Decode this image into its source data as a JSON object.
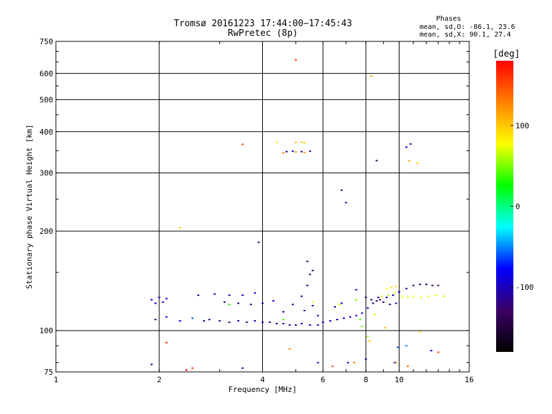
{
  "title": "Tromsø 20161223 17:44:00−17:45:43",
  "subtitle": "RwPretec (8p)",
  "phase_stats": {
    "heading": "Phases",
    "line_o": "mean, sd,O: -86.1, 23.6",
    "line_x": "mean, sd,X:  90.1, 27.4"
  },
  "chart_data": {
    "type": "scatter",
    "title": "Tromsø 20161223 17:44:00−17:45:43",
    "subtitle": "RwPretec (8p)",
    "xlabel": "Frequency [MHz]",
    "ylabel": "Stationary phase Virtual Height [km]",
    "x_scale": "log",
    "y_scale": "log",
    "xlim": [
      1,
      16
    ],
    "ylim": [
      75,
      750
    ],
    "x_ticks": [
      1,
      2,
      4,
      6,
      8,
      10,
      16
    ],
    "y_ticks": [
      75,
      100,
      200,
      300,
      400,
      500,
      600,
      750
    ],
    "grid": true,
    "colorbar": {
      "label": "[deg]",
      "range": [
        -180,
        180
      ],
      "ticks": [
        100,
        0,
        -100
      ],
      "colormap": "rainbow",
      "stops": [
        "#000000",
        "#3c0066",
        "#0000ff",
        "#00ffff",
        "#00ff00",
        "#ffff00",
        "#ff8000",
        "#ff0000"
      ]
    },
    "series": [
      {
        "name": "O",
        "stats": {
          "mean": -86.1,
          "sd": 23.6
        },
        "points": [
          [
            1.9,
            124,
            -80
          ],
          [
            1.95,
            121,
            -90
          ],
          [
            2.0,
            126,
            -100
          ],
          [
            2.05,
            122,
            -95
          ],
          [
            2.1,
            125,
            -85
          ],
          [
            1.95,
            108,
            -110
          ],
          [
            2.1,
            110,
            -90
          ],
          [
            2.3,
            107,
            -80
          ],
          [
            2.5,
            109,
            -60
          ],
          [
            2.7,
            107,
            -110
          ],
          [
            2.8,
            108,
            -120
          ],
          [
            3.0,
            107,
            -115
          ],
          [
            3.2,
            106,
            -110
          ],
          [
            3.4,
            107,
            -105
          ],
          [
            3.6,
            106,
            -115
          ],
          [
            3.8,
            107,
            -110
          ],
          [
            4.0,
            106,
            -100
          ],
          [
            4.2,
            106,
            -110
          ],
          [
            4.4,
            105,
            -105
          ],
          [
            4.6,
            105,
            -110
          ],
          [
            4.8,
            104,
            -115
          ],
          [
            5.0,
            104,
            -110
          ],
          [
            5.2,
            105,
            -100
          ],
          [
            5.5,
            104,
            -105
          ],
          [
            5.8,
            104,
            -110
          ],
          [
            6.0,
            106,
            -100
          ],
          [
            6.3,
            107,
            -95
          ],
          [
            6.6,
            108,
            -90
          ],
          [
            6.9,
            109,
            -85
          ],
          [
            7.2,
            110,
            -95
          ],
          [
            7.5,
            111,
            -100
          ],
          [
            7.8,
            113,
            -105
          ],
          [
            8.1,
            117,
            -100
          ],
          [
            8.4,
            121,
            -110
          ],
          [
            8.8,
            124,
            -120
          ],
          [
            9.2,
            126,
            -115
          ],
          [
            9.6,
            128,
            -110
          ],
          [
            10.0,
            131,
            -100
          ],
          [
            10.5,
            134,
            -110
          ],
          [
            11.0,
            137,
            -120
          ],
          [
            11.5,
            138,
            -130
          ],
          [
            12.0,
            138,
            -135
          ],
          [
            12.5,
            137,
            -140
          ],
          [
            13.0,
            137,
            -130
          ],
          [
            2.6,
            128,
            -110
          ],
          [
            2.9,
            129,
            -100
          ],
          [
            3.2,
            128,
            -105
          ],
          [
            3.5,
            128,
            -100
          ],
          [
            3.8,
            130,
            -95
          ],
          [
            3.1,
            122,
            -110
          ],
          [
            3.4,
            121,
            -115
          ],
          [
            3.7,
            120,
            -110
          ],
          [
            4.0,
            121,
            -105
          ],
          [
            4.3,
            123,
            -100
          ],
          [
            4.6,
            114,
            -110
          ],
          [
            4.9,
            120,
            -100
          ],
          [
            5.2,
            127,
            -105
          ],
          [
            5.4,
            137,
            -110
          ],
          [
            5.5,
            148,
            -115
          ],
          [
            5.4,
            162,
            -120
          ],
          [
            5.6,
            152,
            -110
          ],
          [
            5.3,
            115,
            -110
          ],
          [
            5.6,
            119,
            -100
          ],
          [
            5.8,
            111,
            -100
          ],
          [
            6.5,
            118,
            -110
          ],
          [
            6.8,
            121,
            -105
          ],
          [
            7.5,
            133,
            -100
          ],
          [
            8.0,
            126,
            -110
          ],
          [
            8.3,
            124,
            -115
          ],
          [
            8.6,
            123,
            -120
          ],
          [
            9.0,
            122,
            -115
          ],
          [
            9.4,
            120,
            -110
          ],
          [
            9.8,
            121,
            -105
          ],
          [
            8.7,
            126,
            -125
          ],
          [
            3.9,
            185,
            -110
          ],
          [
            4.7,
            348,
            -110
          ],
          [
            4.9,
            349,
            -100
          ],
          [
            5.2,
            348,
            -115
          ],
          [
            5.5,
            349,
            -120
          ],
          [
            8.6,
            327,
            -130
          ],
          [
            7.0,
            244,
            -100
          ],
          [
            10.8,
            367,
            -90
          ],
          [
            10.5,
            359,
            -80
          ],
          [
            6.8,
            266,
            -120
          ],
          [
            1.9,
            79,
            -110
          ],
          [
            3.5,
            77,
            -100
          ],
          [
            5.8,
            80,
            -105
          ],
          [
            7.1,
            80,
            -95
          ],
          [
            9.7,
            80,
            -80
          ],
          [
            9.9,
            89,
            -60
          ],
          [
            10.5,
            90,
            -50
          ],
          [
            8.0,
            82,
            -100
          ],
          [
            12.4,
            87,
            -90
          ]
        ]
      },
      {
        "name": "X",
        "stats": {
          "mean": 90.1,
          "sd": 27.4
        },
        "points": [
          [
            3.5,
            366,
            150
          ],
          [
            4.4,
            371,
            90
          ],
          [
            5.0,
            371,
            110
          ],
          [
            5.2,
            372,
            100
          ],
          [
            5.3,
            370,
            95
          ],
          [
            4.6,
            345,
            130
          ],
          [
            5.0,
            347,
            120
          ],
          [
            5.3,
            346,
            110
          ],
          [
            10.7,
            326,
            110
          ],
          [
            11.3,
            321,
            100
          ],
          [
            5.0,
            660,
            160
          ],
          [
            8.3,
            589,
            120
          ],
          [
            2.3,
            205,
            100
          ],
          [
            9.2,
            134,
            80
          ],
          [
            9.5,
            135,
            90
          ],
          [
            9.8,
            136,
            95
          ],
          [
            10.2,
            127,
            80
          ],
          [
            10.6,
            126,
            70
          ],
          [
            11.0,
            127,
            75
          ],
          [
            11.6,
            126,
            80
          ],
          [
            12.2,
            127,
            75
          ],
          [
            12.8,
            128,
            70
          ],
          [
            13.5,
            127,
            60
          ],
          [
            8.9,
            127,
            65
          ],
          [
            9.3,
            128,
            55
          ],
          [
            9.7,
            130,
            70
          ],
          [
            5.6,
            122,
            80
          ],
          [
            6.7,
            120,
            60
          ],
          [
            7.5,
            124,
            50
          ],
          [
            7.7,
            108,
            40
          ],
          [
            3.2,
            120,
            30
          ],
          [
            4.6,
            108,
            40
          ],
          [
            7.8,
            103,
            50
          ],
          [
            8.1,
            96,
            60
          ],
          [
            2.1,
            92,
            170
          ],
          [
            2.5,
            77,
            160
          ],
          [
            4.8,
            88,
            130
          ],
          [
            6.4,
            78,
            150
          ],
          [
            8.2,
            93,
            100
          ],
          [
            9.1,
            102,
            110
          ],
          [
            13.0,
            86,
            150
          ],
          [
            9.8,
            80,
            120
          ],
          [
            10.6,
            78,
            140
          ],
          [
            11.5,
            99,
            90
          ],
          [
            8.5,
            112,
            70
          ],
          [
            7.4,
            80,
            130
          ],
          [
            2.4,
            76,
            175
          ]
        ]
      }
    ]
  }
}
